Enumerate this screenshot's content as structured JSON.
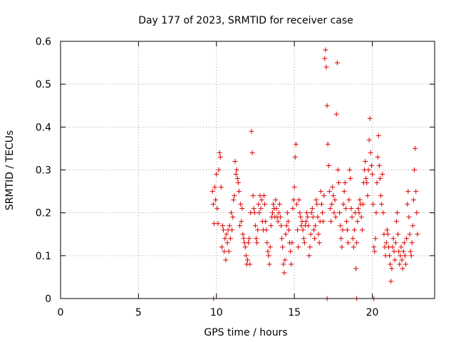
{
  "chart_data": {
    "type": "scatter",
    "title": "Day 177 of 2023, SRMTID for receiver case",
    "xlabel": "GPS time / hours",
    "ylabel": "SRMTID / TECUs",
    "xlim": [
      0,
      24
    ],
    "ylim": [
      0,
      0.6
    ],
    "x_ticks": [
      0,
      5,
      10,
      15,
      20
    ],
    "x_tick_labels": [
      "0",
      "5",
      "10",
      "15",
      "20"
    ],
    "y_ticks": [
      0,
      0.1,
      0.2,
      0.3,
      0.4,
      0.5,
      0.6
    ],
    "y_tick_labels": [
      "0",
      "0.1",
      "0.2",
      "0.3",
      "0.4",
      "0.5",
      "0.6"
    ],
    "grid": true,
    "marker": "plus",
    "color": "#e00000",
    "series": [
      {
        "name": "SRMTID",
        "points": [
          [
            9.75,
            0.25
          ],
          [
            9.8,
            0.22
          ],
          [
            9.85,
            0.175
          ],
          [
            9.9,
            0.26
          ],
          [
            9.95,
            0.23
          ],
          [
            10.0,
            0.29
          ],
          [
            10.05,
            0.21
          ],
          [
            10.1,
            0.175
          ],
          [
            10.15,
            0.3
          ],
          [
            10.2,
            0.34
          ],
          [
            10.25,
            0.33
          ],
          [
            10.3,
            0.26
          ],
          [
            10.35,
            0.12
          ],
          [
            10.4,
            0.17
          ],
          [
            10.45,
            0.16
          ],
          [
            10.5,
            0.11
          ],
          [
            10.55,
            0.14
          ],
          [
            10.6,
            0.09
          ],
          [
            10.65,
            0.15
          ],
          [
            10.7,
            0.13
          ],
          [
            10.75,
            0.16
          ],
          [
            10.8,
            0.11
          ],
          [
            10.85,
            0.17
          ],
          [
            10.9,
            0.14
          ],
          [
            10.95,
            0.2
          ],
          [
            11.0,
            0.16
          ],
          [
            11.05,
            0.19
          ],
          [
            11.1,
            0.23
          ],
          [
            11.15,
            0.24
          ],
          [
            11.2,
            0.32
          ],
          [
            11.25,
            0.29
          ],
          [
            11.3,
            0.3
          ],
          [
            11.35,
            0.28
          ],
          [
            11.4,
            0.27
          ],
          [
            11.45,
            0.25
          ],
          [
            11.5,
            0.17
          ],
          [
            11.55,
            0.22
          ],
          [
            11.6,
            0.18
          ],
          [
            11.65,
            0.21
          ],
          [
            11.7,
            0.15
          ],
          [
            11.75,
            0.14
          ],
          [
            11.8,
            0.13
          ],
          [
            11.85,
            0.12
          ],
          [
            11.9,
            0.1
          ],
          [
            11.95,
            0.08
          ],
          [
            12.0,
            0.09
          ],
          [
            12.05,
            0.13
          ],
          [
            12.1,
            0.14
          ],
          [
            12.15,
            0.08
          ],
          [
            12.2,
            0.2
          ],
          [
            12.25,
            0.39
          ],
          [
            12.3,
            0.34
          ],
          [
            12.35,
            0.24
          ],
          [
            12.4,
            0.21
          ],
          [
            12.45,
            0.2
          ],
          [
            12.5,
            0.17
          ],
          [
            12.55,
            0.14
          ],
          [
            12.6,
            0.13
          ],
          [
            12.65,
            0.16
          ],
          [
            12.7,
            0.22
          ],
          [
            12.75,
            0.2
          ],
          [
            12.8,
            0.24
          ],
          [
            12.85,
            0.21
          ],
          [
            12.9,
            0.23
          ],
          [
            12.95,
            0.18
          ],
          [
            13.0,
            0.16
          ],
          [
            13.05,
            0.24
          ],
          [
            13.1,
            0.22
          ],
          [
            13.15,
            0.18
          ],
          [
            13.2,
            0.16
          ],
          [
            13.25,
            0.13
          ],
          [
            13.3,
            0.11
          ],
          [
            13.35,
            0.1
          ],
          [
            13.4,
            0.08
          ],
          [
            13.45,
            0.12
          ],
          [
            13.5,
            0.17
          ],
          [
            13.55,
            0.19
          ],
          [
            13.6,
            0.2
          ],
          [
            13.65,
            0.22
          ],
          [
            13.7,
            0.21
          ],
          [
            13.75,
            0.19
          ],
          [
            13.8,
            0.23
          ],
          [
            13.85,
            0.21
          ],
          [
            13.9,
            0.19
          ],
          [
            13.95,
            0.18
          ],
          [
            14.0,
            0.2
          ],
          [
            14.05,
            0.22
          ],
          [
            14.1,
            0.19
          ],
          [
            14.15,
            0.17
          ],
          [
            14.2,
            0.14
          ],
          [
            14.25,
            0.12
          ],
          [
            14.3,
            0.08
          ],
          [
            14.35,
            0.06
          ],
          [
            14.4,
            0.09
          ],
          [
            14.45,
            0.15
          ],
          [
            14.5,
            0.17
          ],
          [
            14.55,
            0.2
          ],
          [
            14.6,
            0.18
          ],
          [
            14.65,
            0.16
          ],
          [
            14.7,
            0.13
          ],
          [
            14.75,
            0.11
          ],
          [
            14.8,
            0.08
          ],
          [
            14.85,
            0.13
          ],
          [
            14.9,
            0.21
          ],
          [
            14.95,
            0.23
          ],
          [
            15.0,
            0.26
          ],
          [
            15.05,
            0.33
          ],
          [
            15.1,
            0.36
          ],
          [
            15.15,
            0.22
          ],
          [
            15.2,
            0.16
          ],
          [
            15.25,
            0.12
          ],
          [
            15.3,
            0.23
          ],
          [
            15.35,
            0.2
          ],
          [
            15.4,
            0.19
          ],
          [
            15.45,
            0.17
          ],
          [
            15.5,
            0.18
          ],
          [
            15.55,
            0.16
          ],
          [
            15.6,
            0.14
          ],
          [
            15.65,
            0.13
          ],
          [
            15.7,
            0.17
          ],
          [
            15.75,
            0.18
          ],
          [
            15.8,
            0.2
          ],
          [
            15.85,
            0.19
          ],
          [
            15.9,
            0.17
          ],
          [
            15.95,
            0.1
          ],
          [
            16.0,
            0.12
          ],
          [
            16.05,
            0.15
          ],
          [
            16.1,
            0.2
          ],
          [
            16.15,
            0.21
          ],
          [
            16.2,
            0.19
          ],
          [
            16.25,
            0.16
          ],
          [
            16.3,
            0.14
          ],
          [
            16.35,
            0.17
          ],
          [
            16.4,
            0.23
          ],
          [
            16.45,
            0.22
          ],
          [
            16.5,
            0.19
          ],
          [
            16.55,
            0.15
          ],
          [
            16.6,
            0.13
          ],
          [
            16.65,
            0.18
          ],
          [
            16.7,
            0.25
          ],
          [
            16.75,
            0.22
          ],
          [
            16.8,
            0.2
          ],
          [
            16.85,
            0.18
          ],
          [
            16.9,
            0.24
          ],
          [
            16.95,
            0.56
          ],
          [
            17.0,
            0.58
          ],
          [
            17.05,
            0.54
          ],
          [
            17.1,
            0.45
          ],
          [
            17.15,
            0.36
          ],
          [
            17.2,
            0.31
          ],
          [
            17.25,
            0.25
          ],
          [
            17.3,
            0.21
          ],
          [
            17.35,
            0.18
          ],
          [
            17.4,
            0.22
          ],
          [
            17.45,
            0.26
          ],
          [
            17.5,
            0.24
          ],
          [
            17.55,
            0.2
          ],
          [
            17.6,
            0.23
          ],
          [
            17.65,
            0.19
          ],
          [
            17.7,
            0.43
          ],
          [
            17.75,
            0.55
          ],
          [
            17.8,
            0.3
          ],
          [
            17.85,
            0.27
          ],
          [
            17.9,
            0.2
          ],
          [
            17.95,
            0.17
          ],
          [
            18.0,
            0.14
          ],
          [
            18.05,
            0.12
          ],
          [
            18.1,
            0.16
          ],
          [
            18.15,
            0.22
          ],
          [
            18.2,
            0.25
          ],
          [
            18.25,
            0.27
          ],
          [
            18.3,
            0.21
          ],
          [
            18.35,
            0.18
          ],
          [
            18.4,
            0.16
          ],
          [
            18.45,
            0.13
          ],
          [
            18.5,
            0.23
          ],
          [
            18.55,
            0.3
          ],
          [
            18.6,
            0.28
          ],
          [
            18.65,
            0.21
          ],
          [
            18.7,
            0.19
          ],
          [
            18.75,
            0.14
          ],
          [
            18.8,
            0.12
          ],
          [
            18.85,
            0.16
          ],
          [
            18.9,
            0.2
          ],
          [
            18.95,
            0.07
          ],
          [
            19.0,
            0.13
          ],
          [
            19.05,
            0.18
          ],
          [
            19.1,
            0.21
          ],
          [
            19.15,
            0.2
          ],
          [
            19.2,
            0.23
          ],
          [
            19.25,
            0.22
          ],
          [
            19.3,
            0.19
          ],
          [
            19.35,
            0.16
          ],
          [
            19.4,
            0.22
          ],
          [
            19.45,
            0.27
          ],
          [
            19.5,
            0.3
          ],
          [
            19.55,
            0.32
          ],
          [
            19.6,
            0.28
          ],
          [
            19.65,
            0.27
          ],
          [
            19.7,
            0.24
          ],
          [
            19.75,
            0.3
          ],
          [
            19.8,
            0.37
          ],
          [
            19.85,
            0.42
          ],
          [
            19.9,
            0.34
          ],
          [
            19.95,
            0.31
          ],
          [
            20.0,
            0.29
          ],
          [
            20.05,
            0.22
          ],
          [
            20.1,
            0.12
          ],
          [
            20.15,
            0.11
          ],
          [
            20.2,
            0.14
          ],
          [
            20.25,
            0.2
          ],
          [
            20.3,
            0.27
          ],
          [
            20.35,
            0.33
          ],
          [
            20.4,
            0.38
          ],
          [
            20.45,
            0.31
          ],
          [
            20.5,
            0.28
          ],
          [
            20.55,
            0.24
          ],
          [
            20.6,
            0.22
          ],
          [
            20.65,
            0.29
          ],
          [
            20.7,
            0.2
          ],
          [
            20.75,
            0.15
          ],
          [
            20.8,
            0.12
          ],
          [
            20.85,
            0.1
          ],
          [
            20.9,
            0.13
          ],
          [
            20.95,
            0.16
          ],
          [
            21.0,
            0.15
          ],
          [
            21.05,
            0.12
          ],
          [
            21.1,
            0.1
          ],
          [
            21.15,
            0.08
          ],
          [
            21.2,
            0.04
          ],
          [
            21.25,
            0.07
          ],
          [
            21.3,
            0.12
          ],
          [
            21.35,
            0.14
          ],
          [
            21.4,
            0.11
          ],
          [
            21.45,
            0.09
          ],
          [
            21.5,
            0.13
          ],
          [
            21.55,
            0.18
          ],
          [
            21.6,
            0.2
          ],
          [
            21.65,
            0.15
          ],
          [
            21.7,
            0.11
          ],
          [
            21.75,
            0.08
          ],
          [
            21.8,
            0.1
          ],
          [
            21.85,
            0.12
          ],
          [
            21.9,
            0.09
          ],
          [
            21.95,
            0.07
          ],
          [
            22.0,
            0.11
          ],
          [
            22.05,
            0.13
          ],
          [
            22.1,
            0.1
          ],
          [
            22.15,
            0.08
          ],
          [
            22.2,
            0.14
          ],
          [
            22.25,
            0.22
          ],
          [
            22.3,
            0.25
          ],
          [
            22.35,
            0.19
          ],
          [
            22.4,
            0.15
          ],
          [
            22.45,
            0.11
          ],
          [
            22.5,
            0.1
          ],
          [
            22.55,
            0.13
          ],
          [
            22.6,
            0.17
          ],
          [
            22.65,
            0.23
          ],
          [
            22.7,
            0.3
          ],
          [
            22.75,
            0.35
          ],
          [
            22.8,
            0.25
          ],
          [
            22.85,
            0.2
          ],
          [
            22.9,
            0.15
          ],
          [
            9.82,
            0.0
          ],
          [
            17.1,
            0.0
          ],
          [
            19.0,
            0.0
          ],
          [
            20.1,
            0.0
          ]
        ]
      }
    ]
  }
}
